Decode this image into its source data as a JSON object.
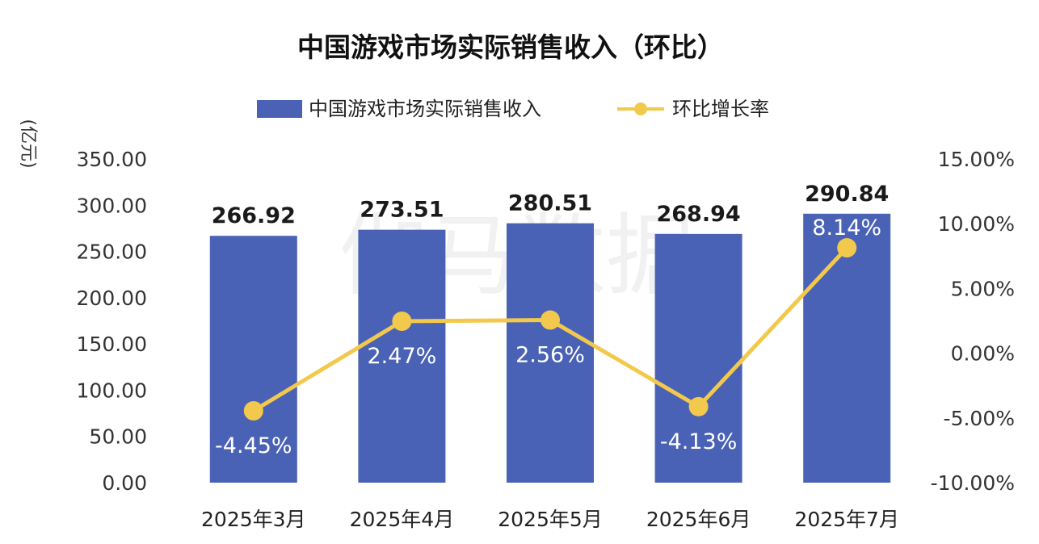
{
  "chart_data": {
    "type": "bar",
    "title": "中国游戏市场实际销售收入（环比）",
    "ylabel": "(亿元)",
    "categories": [
      "2025年3月",
      "2025年4月",
      "2025年5月",
      "2025年6月",
      "2025年7月"
    ],
    "series": [
      {
        "name": "中国游戏市场实际销售收入",
        "type": "bar",
        "axis": "left",
        "values": [
          266.92,
          273.51,
          280.51,
          268.94,
          290.84
        ],
        "labels": [
          "266.92",
          "273.51",
          "280.51",
          "268.94",
          "290.84"
        ],
        "color": "#4a62b5"
      },
      {
        "name": "环比增长率",
        "type": "line",
        "axis": "right",
        "values": [
          -4.45,
          2.47,
          2.56,
          -4.13,
          8.14
        ],
        "labels": [
          "-4.45%",
          "2.47%",
          "2.56%",
          "-4.13%",
          "8.14%"
        ],
        "color": "#f2c94c"
      }
    ],
    "y_left": {
      "range": [
        0,
        350
      ],
      "ticks": [
        "0.00",
        "50.00",
        "100.00",
        "150.00",
        "200.00",
        "250.00",
        "300.00",
        "350.00"
      ]
    },
    "y_right": {
      "range": [
        -10,
        15
      ],
      "ticks": [
        "-10.00%",
        "-5.00%",
        "0.00%",
        "5.00%",
        "10.00%",
        "15.00%"
      ]
    },
    "grid": false,
    "legend": "top-center"
  }
}
